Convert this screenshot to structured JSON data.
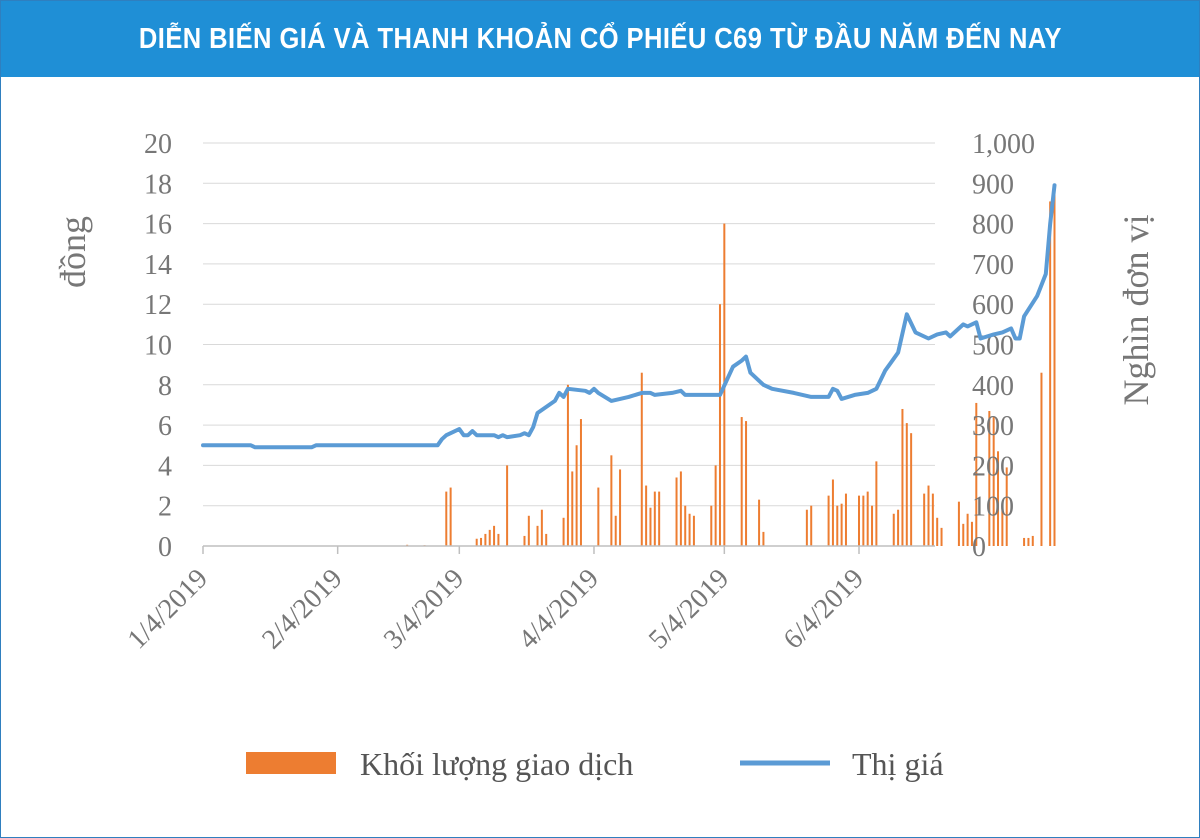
{
  "title": "DIỄN BIẾN GIÁ VÀ THANH KHOẢN CỔ PHIẾU C69 TỪ ĐẦU NĂM ĐẾN NAY",
  "colors": {
    "title_bg": "#1f8fd6",
    "price_line": "#5b9bd5",
    "volume_bars": "#ed7d31",
    "axis": "#bfbfbf",
    "text": "#777777"
  },
  "chart_data": {
    "type": "bar+line",
    "ylabel_left": "đồng",
    "ylabel_right": "Nghìn đơn vị",
    "ylim_left": [
      0,
      20
    ],
    "ylim_right": [
      0,
      1000
    ],
    "yticks_left": [
      "0",
      "2",
      "4",
      "6",
      "8",
      "10",
      "12",
      "14",
      "16",
      "18",
      "20"
    ],
    "yticks_right": [
      "0",
      "100",
      "200",
      "300",
      "400",
      "500",
      "600",
      "700",
      "800",
      "900",
      "1,000"
    ],
    "xticks": [
      "1/4/2019",
      "2/4/2019",
      "3/4/2019",
      "4/4/2019",
      "5/4/2019",
      "6/4/2019"
    ],
    "x_start": "2019-01-04",
    "x_end": "2019-06-28",
    "legend": [
      "Khối lượng giao dịch",
      "Thị giá"
    ],
    "price_series": {
      "name": "Thị giá",
      "points": [
        [
          "2019-01-04",
          5.0
        ],
        [
          "2019-01-15",
          5.0
        ],
        [
          "2019-01-16",
          4.9
        ],
        [
          "2019-01-29",
          4.9
        ],
        [
          "2019-01-30",
          5.0
        ],
        [
          "2019-02-13",
          5.0
        ],
        [
          "2019-02-27",
          5.0
        ],
        [
          "2019-02-28",
          5.3
        ],
        [
          "2019-03-01",
          5.5
        ],
        [
          "2019-03-04",
          5.8
        ],
        [
          "2019-03-05",
          5.5
        ],
        [
          "2019-03-06",
          5.5
        ],
        [
          "2019-03-07",
          5.7
        ],
        [
          "2019-03-08",
          5.5
        ],
        [
          "2019-03-12",
          5.5
        ],
        [
          "2019-03-13",
          5.4
        ],
        [
          "2019-03-14",
          5.5
        ],
        [
          "2019-03-15",
          5.4
        ],
        [
          "2019-03-18",
          5.5
        ],
        [
          "2019-03-19",
          5.6
        ],
        [
          "2019-03-20",
          5.5
        ],
        [
          "2019-03-21",
          5.9
        ],
        [
          "2019-03-22",
          6.6
        ],
        [
          "2019-03-26",
          7.2
        ],
        [
          "2019-03-27",
          7.6
        ],
        [
          "2019-03-28",
          7.4
        ],
        [
          "2019-03-29",
          7.8
        ],
        [
          "2019-04-02",
          7.7
        ],
        [
          "2019-04-03",
          7.6
        ],
        [
          "2019-04-04",
          7.8
        ],
        [
          "2019-04-05",
          7.6
        ],
        [
          "2019-04-08",
          7.2
        ],
        [
          "2019-04-10",
          7.3
        ],
        [
          "2019-04-12",
          7.4
        ],
        [
          "2019-04-15",
          7.6
        ],
        [
          "2019-04-17",
          7.6
        ],
        [
          "2019-04-18",
          7.5
        ],
        [
          "2019-04-22",
          7.6
        ],
        [
          "2019-04-24",
          7.7
        ],
        [
          "2019-04-25",
          7.5
        ],
        [
          "2019-05-02",
          7.5
        ],
        [
          "2019-05-03",
          7.5
        ],
        [
          "2019-05-06",
          8.9
        ],
        [
          "2019-05-08",
          9.2
        ],
        [
          "2019-05-09",
          9.4
        ],
        [
          "2019-05-10",
          8.6
        ],
        [
          "2019-05-13",
          8.0
        ],
        [
          "2019-05-15",
          7.8
        ],
        [
          "2019-05-20",
          7.6
        ],
        [
          "2019-05-24",
          7.4
        ],
        [
          "2019-05-28",
          7.4
        ],
        [
          "2019-05-29",
          7.8
        ],
        [
          "2019-05-30",
          7.7
        ],
        [
          "2019-05-31",
          7.3
        ],
        [
          "2019-06-03",
          7.5
        ],
        [
          "2019-06-06",
          7.6
        ],
        [
          "2019-06-08",
          7.8
        ],
        [
          "2019-06-10",
          8.7
        ],
        [
          "2019-06-13",
          9.6
        ],
        [
          "2019-06-15",
          11.5
        ],
        [
          "2019-06-17",
          10.6
        ],
        [
          "2019-06-20",
          10.3
        ],
        [
          "2019-06-22",
          10.5
        ],
        [
          "2019-06-24",
          10.6
        ],
        [
          "2019-06-25",
          10.4
        ],
        [
          "2019-06-27",
          10.8
        ],
        [
          "2019-06-28",
          11.0
        ],
        [
          "2019-06-29",
          10.9
        ],
        [
          "2019-07-01",
          11.1
        ],
        [
          "2019-07-02",
          10.3
        ],
        [
          "2019-07-05",
          10.5
        ],
        [
          "2019-07-07",
          10.6
        ],
        [
          "2019-07-09",
          10.8
        ],
        [
          "2019-07-10",
          10.3
        ],
        [
          "2019-07-11",
          10.3
        ],
        [
          "2019-07-12",
          11.4
        ],
        [
          "2019-07-15",
          12.4
        ],
        [
          "2019-07-17",
          13.5
        ],
        [
          "2019-07-18",
          16.0
        ],
        [
          "2019-07-19",
          17.9
        ]
      ]
    },
    "volume_series": {
      "name": "Khối lượng giao dịch",
      "points": [
        [
          "2019-02-20",
          3
        ],
        [
          "2019-02-24",
          2
        ],
        [
          "2019-03-01",
          135
        ],
        [
          "2019-03-02",
          145
        ],
        [
          "2019-03-08",
          18
        ],
        [
          "2019-03-09",
          20
        ],
        [
          "2019-03-10",
          30
        ],
        [
          "2019-03-11",
          40
        ],
        [
          "2019-03-12",
          50
        ],
        [
          "2019-03-13",
          30
        ],
        [
          "2019-03-15",
          200
        ],
        [
          "2019-03-19",
          25
        ],
        [
          "2019-03-20",
          75
        ],
        [
          "2019-03-22",
          50
        ],
        [
          "2019-03-23",
          90
        ],
        [
          "2019-03-24",
          30
        ],
        [
          "2019-03-28",
          70
        ],
        [
          "2019-03-29",
          400
        ],
        [
          "2019-03-30",
          185
        ],
        [
          "2019-03-31",
          250
        ],
        [
          "2019-04-01",
          315
        ],
        [
          "2019-04-05",
          145
        ],
        [
          "2019-04-08",
          225
        ],
        [
          "2019-04-09",
          75
        ],
        [
          "2019-04-10",
          190
        ],
        [
          "2019-04-15",
          430
        ],
        [
          "2019-04-16",
          150
        ],
        [
          "2019-04-17",
          95
        ],
        [
          "2019-04-18",
          135
        ],
        [
          "2019-04-19",
          135
        ],
        [
          "2019-04-23",
          170
        ],
        [
          "2019-04-24",
          185
        ],
        [
          "2019-04-25",
          100
        ],
        [
          "2019-04-26",
          80
        ],
        [
          "2019-04-27",
          75
        ],
        [
          "2019-05-01",
          100
        ],
        [
          "2019-05-02",
          200
        ],
        [
          "2019-05-03",
          600
        ],
        [
          "2019-05-04",
          800
        ],
        [
          "2019-05-08",
          320
        ],
        [
          "2019-05-09",
          310
        ],
        [
          "2019-05-12",
          115
        ],
        [
          "2019-05-13",
          35
        ],
        [
          "2019-05-23",
          90
        ],
        [
          "2019-05-24",
          100
        ],
        [
          "2019-05-28",
          125
        ],
        [
          "2019-05-29",
          165
        ],
        [
          "2019-05-30",
          100
        ],
        [
          "2019-05-31",
          105
        ],
        [
          "2019-06-01",
          130
        ],
        [
          "2019-06-04",
          125
        ],
        [
          "2019-06-05",
          125
        ],
        [
          "2019-06-06",
          135
        ],
        [
          "2019-06-07",
          100
        ],
        [
          "2019-06-08",
          210
        ],
        [
          "2019-06-12",
          80
        ],
        [
          "2019-06-13",
          90
        ],
        [
          "2019-06-14",
          340
        ],
        [
          "2019-06-15",
          305
        ],
        [
          "2019-06-16",
          280
        ],
        [
          "2019-06-19",
          130
        ],
        [
          "2019-06-20",
          150
        ],
        [
          "2019-06-21",
          130
        ],
        [
          "2019-06-22",
          70
        ],
        [
          "2019-06-23",
          45
        ],
        [
          "2019-06-27",
          110
        ],
        [
          "2019-06-28",
          55
        ],
        [
          "2019-06-29",
          80
        ],
        [
          "2019-06-30",
          60
        ],
        [
          "2019-07-01",
          355
        ],
        [
          "2019-07-04",
          335
        ],
        [
          "2019-07-05",
          320
        ],
        [
          "2019-07-06",
          235
        ],
        [
          "2019-07-07",
          100
        ],
        [
          "2019-07-08",
          195
        ],
        [
          "2019-07-12",
          20
        ],
        [
          "2019-07-13",
          20
        ],
        [
          "2019-07-14",
          25
        ],
        [
          "2019-07-16",
          430
        ],
        [
          "2019-07-18",
          855
        ],
        [
          "2019-07-19",
          880
        ]
      ]
    }
  }
}
